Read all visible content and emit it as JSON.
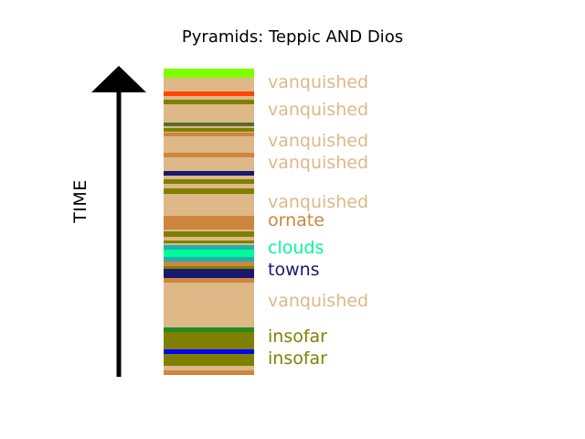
{
  "title": "Pyramids: Teppic AND Dios",
  "axis_label": "TIME",
  "colors": {
    "base": "#deb887",
    "arrow": "#000000"
  },
  "bands": [
    {
      "from": 0.0,
      "to": 0.03,
      "color": "#7fff00"
    },
    {
      "from": 0.075,
      "to": 0.09,
      "color": "#ff4500"
    },
    {
      "from": 0.1,
      "to": 0.115,
      "color": "#808000"
    },
    {
      "from": 0.175,
      "to": 0.188,
      "color": "#556b2f"
    },
    {
      "from": 0.195,
      "to": 0.205,
      "color": "#808000"
    },
    {
      "from": 0.21,
      "to": 0.22,
      "color": "#cd853f"
    },
    {
      "from": 0.275,
      "to": 0.29,
      "color": "#cd853f"
    },
    {
      "from": 0.333,
      "to": 0.348,
      "color": "#191970"
    },
    {
      "from": 0.36,
      "to": 0.375,
      "color": "#808000"
    },
    {
      "from": 0.392,
      "to": 0.408,
      "color": "#808000"
    },
    {
      "from": 0.48,
      "to": 0.525,
      "color": "#cd853f"
    },
    {
      "from": 0.53,
      "to": 0.55,
      "color": "#808000"
    },
    {
      "from": 0.56,
      "to": 0.57,
      "color": "#808000"
    },
    {
      "from": 0.575,
      "to": 0.59,
      "color": "#20b2aa"
    },
    {
      "from": 0.59,
      "to": 0.615,
      "color": "#00fa9a"
    },
    {
      "from": 0.615,
      "to": 0.63,
      "color": "#20b2aa"
    },
    {
      "from": 0.63,
      "to": 0.645,
      "color": "#cd853f"
    },
    {
      "from": 0.645,
      "to": 0.655,
      "color": "#808000"
    },
    {
      "from": 0.655,
      "to": 0.685,
      "color": "#191970"
    },
    {
      "from": 0.685,
      "to": 0.7,
      "color": "#cd853f"
    },
    {
      "from": 0.845,
      "to": 0.86,
      "color": "#228b22"
    },
    {
      "from": 0.86,
      "to": 0.915,
      "color": "#808000"
    },
    {
      "from": 0.915,
      "to": 0.93,
      "color": "#0000ff"
    },
    {
      "from": 0.93,
      "to": 0.97,
      "color": "#808000"
    },
    {
      "from": 0.985,
      "to": 1.0,
      "color": "#cd853f"
    }
  ],
  "labels": [
    {
      "text": "vanquished",
      "pos": 0.045,
      "color": "#deb887"
    },
    {
      "text": "vanquished",
      "pos": 0.135,
      "color": "#deb887"
    },
    {
      "text": "vanquished",
      "pos": 0.237,
      "color": "#deb887"
    },
    {
      "text": "vanquished",
      "pos": 0.308,
      "color": "#deb887"
    },
    {
      "text": "vanquished",
      "pos": 0.437,
      "color": "#deb887"
    },
    {
      "text": "ornate",
      "pos": 0.497,
      "color": "#cd853f"
    },
    {
      "text": "clouds",
      "pos": 0.585,
      "color": "#00fa9a"
    },
    {
      "text": "towns",
      "pos": 0.657,
      "color": "#191970"
    },
    {
      "text": "vanquished",
      "pos": 0.757,
      "color": "#deb887"
    },
    {
      "text": "insofar",
      "pos": 0.875,
      "color": "#808000"
    },
    {
      "text": "insofar",
      "pos": 0.947,
      "color": "#808000"
    }
  ]
}
